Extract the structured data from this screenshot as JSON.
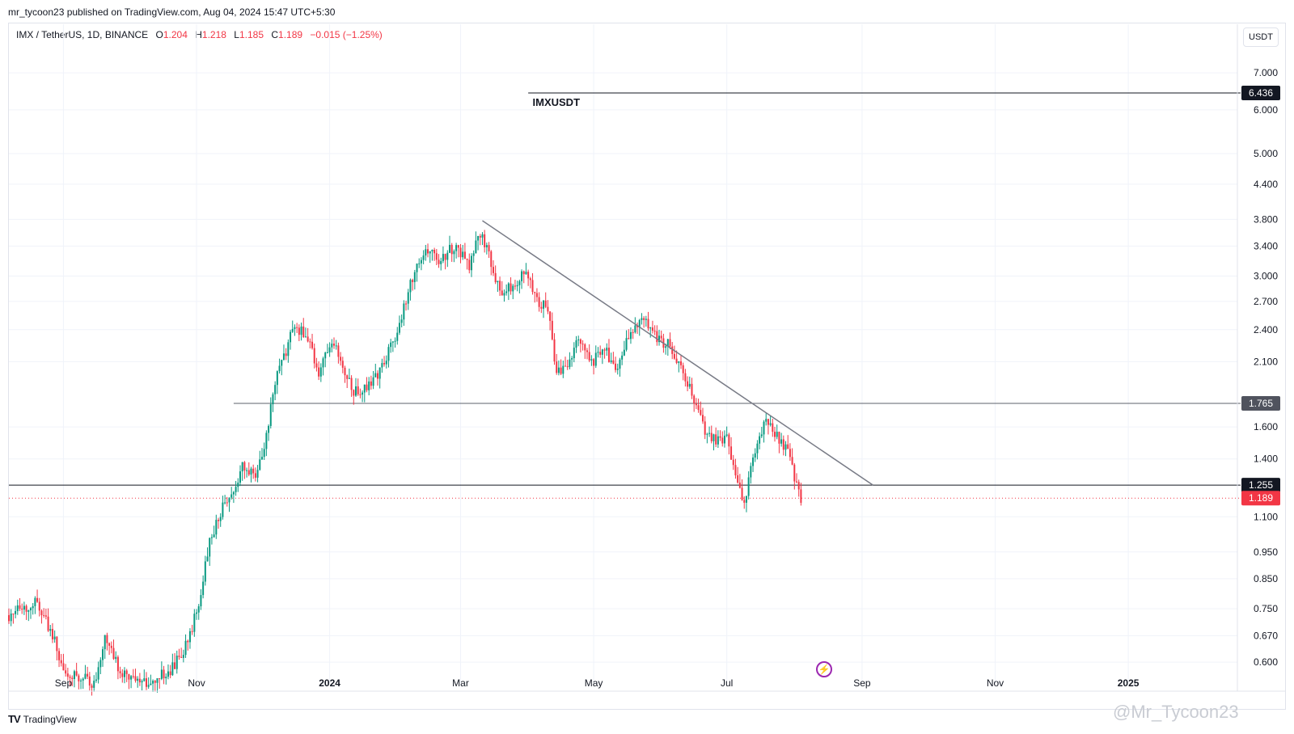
{
  "header": {
    "published": "mr_tycoon23 published on TradingView.com, Aug 04, 2024 15:47 UTC+5:30",
    "symbol": "IMX / TetherUS, 1D, BINANCE",
    "o_label": "O",
    "o_val": "1.204",
    "h_label": "H",
    "h_val": "1.218",
    "l_label": "L",
    "l_val": "1.185",
    "c_label": "C",
    "c_val": "1.189",
    "change": "−0.015 (−1.25%)",
    "currency": "USDT"
  },
  "footer": {
    "brand": "TradingView",
    "watermark": "@Mr_Tycoon23"
  },
  "colors": {
    "up": "#089981",
    "down": "#f23645",
    "line": "#131722",
    "trend": "#787b86"
  },
  "chart_data": {
    "type": "candlestick",
    "title": "IMXUSDT",
    "y_scale": "log",
    "ylim": [
      0.55,
      7.8
    ],
    "y_ticks": [
      "0.600",
      "0.670",
      "0.750",
      "0.850",
      "0.950",
      "1.100",
      "1.400",
      "1.600",
      "2.100",
      "2.400",
      "2.700",
      "3.000",
      "3.400",
      "3.800",
      "4.400",
      "5.000",
      "6.000",
      "7.000"
    ],
    "x_range": [
      "2023-08-07",
      "2025-02-20"
    ],
    "x_ticks": [
      {
        "date": "2023-09-01",
        "label": "Sep"
      },
      {
        "date": "2023-11-01",
        "label": "Nov"
      },
      {
        "date": "2024-01-01",
        "label": "2024"
      },
      {
        "date": "2024-03-01",
        "label": "Mar"
      },
      {
        "date": "2024-05-01",
        "label": "May"
      },
      {
        "date": "2024-07-01",
        "label": "Jul"
      },
      {
        "date": "2024-09-01",
        "label": "Sep"
      },
      {
        "date": "2024-11-01",
        "label": "Nov"
      },
      {
        "date": "2025-01-01",
        "label": "2025"
      }
    ],
    "price_path": [
      [
        "2023-08-07",
        0.73
      ],
      [
        "2023-08-20",
        0.77
      ],
      [
        "2023-08-29",
        0.64
      ],
      [
        "2023-09-01",
        0.58
      ],
      [
        "2023-09-15",
        0.55
      ],
      [
        "2023-09-20",
        0.66
      ],
      [
        "2023-09-28",
        0.57
      ],
      [
        "2023-10-10",
        0.55
      ],
      [
        "2023-10-20",
        0.58
      ],
      [
        "2023-10-28",
        0.65
      ],
      [
        "2023-11-03",
        0.8
      ],
      [
        "2023-11-07",
        1.0
      ],
      [
        "2023-11-12",
        1.12
      ],
      [
        "2023-11-16",
        1.2
      ],
      [
        "2023-11-22",
        1.35
      ],
      [
        "2023-11-28",
        1.3
      ],
      [
        "2023-12-03",
        1.55
      ],
      [
        "2023-12-07",
        1.95
      ],
      [
        "2023-12-12",
        2.2
      ],
      [
        "2023-12-16",
        2.45
      ],
      [
        "2023-12-22",
        2.3
      ],
      [
        "2023-12-27",
        2.0
      ],
      [
        "2024-01-02",
        2.3
      ],
      [
        "2024-01-07",
        2.05
      ],
      [
        "2024-01-12",
        1.85
      ],
      [
        "2024-01-18",
        1.9
      ],
      [
        "2024-01-25",
        2.05
      ],
      [
        "2024-02-01",
        2.4
      ],
      [
        "2024-02-08",
        3.0
      ],
      [
        "2024-02-14",
        3.4
      ],
      [
        "2024-02-20",
        3.2
      ],
      [
        "2024-02-27",
        3.4
      ],
      [
        "2024-03-05",
        3.15
      ],
      [
        "2024-03-10",
        3.6
      ],
      [
        "2024-03-14",
        3.3
      ],
      [
        "2024-03-19",
        2.8
      ],
      [
        "2024-03-25",
        2.9
      ],
      [
        "2024-03-31",
        3.05
      ],
      [
        "2024-04-06",
        2.7
      ],
      [
        "2024-04-10",
        2.6
      ],
      [
        "2024-04-14",
        2.0
      ],
      [
        "2024-04-19",
        2.05
      ],
      [
        "2024-04-24",
        2.35
      ],
      [
        "2024-04-30",
        2.1
      ],
      [
        "2024-05-06",
        2.2
      ],
      [
        "2024-05-12",
        2.05
      ],
      [
        "2024-05-18",
        2.4
      ],
      [
        "2024-05-24",
        2.55
      ],
      [
        "2024-05-30",
        2.3
      ],
      [
        "2024-06-05",
        2.25
      ],
      [
        "2024-06-10",
        2.05
      ],
      [
        "2024-06-15",
        1.85
      ],
      [
        "2024-06-20",
        1.6
      ],
      [
        "2024-06-26",
        1.5
      ],
      [
        "2024-07-01",
        1.55
      ],
      [
        "2024-07-05",
        1.3
      ],
      [
        "2024-07-09",
        1.18
      ],
      [
        "2024-07-14",
        1.45
      ],
      [
        "2024-07-19",
        1.65
      ],
      [
        "2024-07-24",
        1.55
      ],
      [
        "2024-07-29",
        1.45
      ],
      [
        "2024-08-02",
        1.25
      ],
      [
        "2024-08-04",
        1.189
      ]
    ],
    "horizontal_levels": [
      {
        "value": 6.436,
        "label": "6.436",
        "from": "2024-04-01",
        "style": "dark"
      },
      {
        "value": 1.765,
        "label": "1.765",
        "from": "2023-11-18",
        "style": "grey"
      },
      {
        "value": 1.255,
        "label": "1.255",
        "from": "2023-08-07",
        "style": "dark"
      },
      {
        "value": 1.189,
        "label": "1.189",
        "from": "2023-08-07",
        "style": "last"
      }
    ],
    "trendline": {
      "start": [
        "2024-03-11",
        3.78
      ],
      "end": [
        "2024-09-06",
        1.255
      ]
    }
  }
}
